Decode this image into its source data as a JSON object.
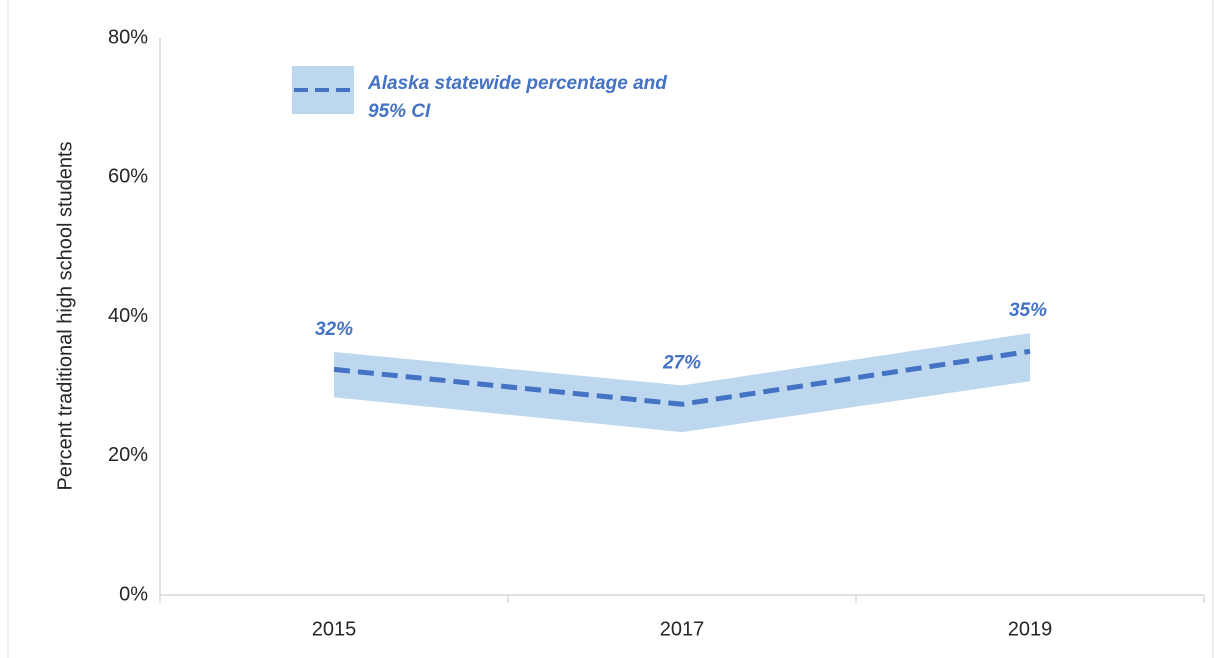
{
  "chart_data": {
    "type": "line",
    "y_label": "Percent traditional high school students",
    "categories": [
      "2015",
      "2017",
      "2019"
    ],
    "series": [
      {
        "name": "Alaska statewide percentage and 95% CI",
        "color": "#4472c4",
        "band_color": "#bdd7ee",
        "values": [
          32.4,
          27.4,
          35.0
        ],
        "value_labels": [
          "32%",
          "27%",
          "35%"
        ],
        "lower": [
          28.4,
          23.4,
          30.7
        ],
        "upper": [
          34.9,
          30.1,
          37.6
        ]
      }
    ],
    "ylim": [
      0,
      80
    ],
    "yticks": [
      {
        "value": 0,
        "label": "0%"
      },
      {
        "value": 20,
        "label": "20%"
      },
      {
        "value": 40,
        "label": "40%"
      },
      {
        "value": 60,
        "label": "60%"
      },
      {
        "value": 80,
        "label": "80%"
      }
    ]
  }
}
